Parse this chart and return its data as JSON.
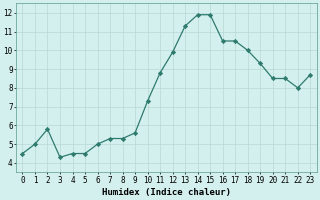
{
  "x": [
    0,
    1,
    2,
    3,
    4,
    5,
    6,
    7,
    8,
    9,
    10,
    11,
    12,
    13,
    14,
    15,
    16,
    17,
    18,
    19,
    20,
    21,
    22,
    23
  ],
  "y": [
    4.5,
    5.0,
    5.8,
    4.3,
    4.5,
    4.5,
    5.0,
    5.3,
    5.3,
    5.6,
    7.3,
    8.8,
    9.9,
    11.3,
    11.9,
    11.9,
    10.5,
    10.5,
    10.0,
    9.3,
    8.5,
    8.5,
    8.0,
    8.7
  ],
  "line_color": "#2e7b6e",
  "marker_color": "#2e7b6e",
  "bg_color": "#d4f0ee",
  "grid_color": "#b8d8d4",
  "axis_bg": "#d4f0ee",
  "xlabel": "Humidex (Indice chaleur)",
  "ylim": [
    3.5,
    12.5
  ],
  "xlim": [
    -0.5,
    23.5
  ],
  "yticks": [
    4,
    5,
    6,
    7,
    8,
    9,
    10,
    11,
    12
  ],
  "xtick_labels": [
    "0",
    "1",
    "2",
    "3",
    "4",
    "5",
    "6",
    "7",
    "8",
    "9",
    "10",
    "11",
    "12",
    "13",
    "14",
    "15",
    "16",
    "17",
    "18",
    "19",
    "20",
    "21",
    "22",
    "23"
  ],
  "label_fontsize": 6.5,
  "tick_fontsize": 5.5
}
